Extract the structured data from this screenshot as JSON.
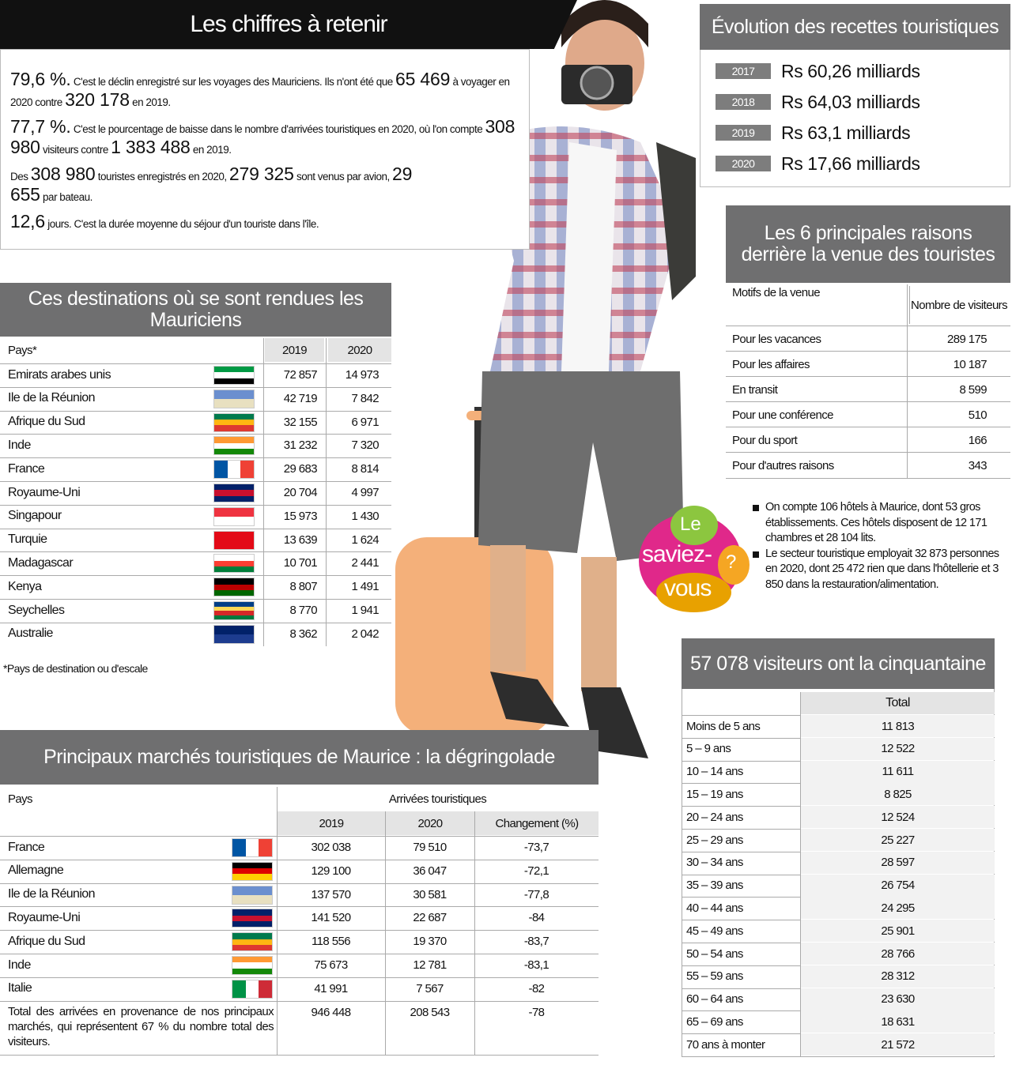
{
  "key_figures": {
    "title": "Les chiffres à retenir",
    "items": [
      [
        "79,6 %.",
        "C'est le déclin enregistré sur les voyages des Mauriciens. Ils n'ont été que",
        "65 469",
        "à voyager en 2020 contre",
        "320 178",
        "en 2019."
      ],
      [
        "77,7 %.",
        "C'est le pourcentage de baisse dans le nombre d'arrivées touristiques en 2020, où l'on compte",
        "308 980",
        "visiteurs contre",
        "1 383 488",
        "en 2019."
      ],
      [
        "Des",
        "308 980",
        "touristes enregistrés en 2020,",
        "279 325",
        "sont venus par avion,",
        "29 655",
        "par bateau."
      ],
      [
        "12,6",
        "jours. C'est la durée moyenne du séjour d'un touriste dans l'île."
      ]
    ]
  },
  "revenue": {
    "title": "Évolution des recettes touristiques",
    "rows": [
      [
        "2017",
        "Rs 60,26 milliards"
      ],
      [
        "2018",
        "Rs 64,03 milliards"
      ],
      [
        "2019",
        "Rs 63,1 milliards"
      ],
      [
        "2020",
        "Rs 17,66 milliards"
      ]
    ]
  },
  "reasons": {
    "title": "Les 6 principales raisons derrière la venue des touristes",
    "header": [
      "Motifs de la venue",
      "Nombre de visiteurs"
    ],
    "rows": [
      [
        "Pour les vacances",
        "289 175"
      ],
      [
        "Pour les affaires",
        "10 187"
      ],
      [
        "En transit",
        "8 599"
      ],
      [
        "Pour une conférence",
        "510"
      ],
      [
        "Pour du sport",
        "166"
      ],
      [
        "Pour d'autres raisons",
        "343"
      ]
    ]
  },
  "destinations": {
    "title": "Ces destinations où se sont rendues les Mauriciens",
    "header": [
      "Pays*",
      "2019",
      "2020"
    ],
    "rows": [
      [
        "Emirats arabes unis",
        "72 857",
        "14 973"
      ],
      [
        "Ile de la Réunion",
        "42 719",
        "7 842"
      ],
      [
        "Afrique du Sud",
        "32 155",
        "6 971"
      ],
      [
        "Inde",
        "31 232",
        "7 320"
      ],
      [
        "France",
        "29 683",
        "8 814"
      ],
      [
        "Royaume-Uni",
        "20 704",
        "4 997"
      ],
      [
        "Singapour",
        "15 973",
        "1 430"
      ],
      [
        "Turquie",
        "13 639",
        "1 624"
      ],
      [
        "Madagascar",
        "10 701",
        "2 441"
      ],
      [
        "Kenya",
        "8 807",
        "1 491"
      ],
      [
        "Seychelles",
        "8 770",
        "1 941"
      ],
      [
        "Australie",
        "8 362",
        "2 042"
      ]
    ],
    "footnote": "*Pays de destination ou d'escale"
  },
  "did_you_know": {
    "badge": [
      "Le",
      "saviez-",
      "?",
      "vous"
    ],
    "items": [
      "On compte 106 hôtels à Maurice, dont 53 gros établissements. Ces hôtels disposent de 12 171 chambres et 28 104 lits.",
      "Le secteur touristique employait 32 873 personnes en 2020, dont 25 472 rien que dans l'hôtellerie et 3 850 dans la restauration/alimentation."
    ]
  },
  "ages": {
    "title": "57 078 visiteurs ont la cinquantaine",
    "header": "Total",
    "rows": [
      [
        "Moins de 5 ans",
        "11 813"
      ],
      [
        "5 – 9 ans",
        "12 522"
      ],
      [
        "10 – 14 ans",
        "11 611"
      ],
      [
        "15 – 19 ans",
        "8 825"
      ],
      [
        "20 – 24 ans",
        "12 524"
      ],
      [
        "25 – 29 ans",
        "25 227"
      ],
      [
        "30 – 34 ans",
        "28 597"
      ],
      [
        "35 – 39 ans",
        "26 754"
      ],
      [
        "40 – 44 ans",
        "24 295"
      ],
      [
        "45 – 49 ans",
        "25 901"
      ],
      [
        "50 – 54 ans",
        "28 766"
      ],
      [
        "55 – 59 ans",
        "28 312"
      ],
      [
        "60 – 64 ans",
        "23 630"
      ],
      [
        "65 – 69 ans",
        "18 631"
      ],
      [
        "70 ans à monter",
        "21 572"
      ]
    ]
  },
  "markets": {
    "title": "Principaux marchés touristiques de Maurice : la dégringolade",
    "header": "Pays",
    "group": "Arrivées touristiques",
    "columns": [
      "2019",
      "2020",
      "Changement (%)"
    ],
    "rows": [
      [
        "France",
        "302 038",
        "79 510",
        "-73,7"
      ],
      [
        "Allemagne",
        "129 100",
        "36 047",
        "-72,1"
      ],
      [
        "Ile de la Réunion",
        "137 570",
        "30 581",
        "-77,8"
      ],
      [
        "Royaume-Uni",
        "141 520",
        "22 687",
        "-84"
      ],
      [
        "Afrique du Sud",
        "118 556",
        "19 370",
        "-83,7"
      ],
      [
        "Inde",
        "75 673",
        "12 781",
        "-83,1"
      ],
      [
        "Italie",
        "41 991",
        "7 567",
        "-82"
      ]
    ],
    "total": [
      "Total des arrivées en provenance de nos principaux marchés, qui représentent 67 % du nombre total des visiteurs.",
      "946 448",
      "208 543",
      "-78"
    ]
  }
}
